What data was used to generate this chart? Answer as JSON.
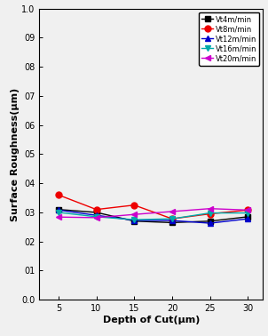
{
  "x": [
    5,
    10,
    15,
    20,
    25,
    30
  ],
  "series": [
    {
      "label": "Vt4m/min",
      "color": "#000000",
      "marker": "s",
      "markersize": 4,
      "y": [
        0.31,
        0.3,
        0.27,
        0.265,
        0.27,
        0.285
      ]
    },
    {
      "label": "Vt8m/min",
      "color": "#ee0000",
      "marker": "o",
      "markersize": 5,
      "y": [
        0.36,
        0.31,
        0.325,
        0.278,
        0.295,
        0.308
      ]
    },
    {
      "label": "Vt12m/min",
      "color": "#0000cc",
      "marker": "^",
      "markersize": 5,
      "y": [
        0.308,
        0.29,
        0.273,
        0.272,
        0.263,
        0.278
      ]
    },
    {
      "label": "Vt16m/min",
      "color": "#00aaaa",
      "marker": "v",
      "markersize": 5,
      "y": [
        0.3,
        0.285,
        0.275,
        0.278,
        0.298,
        0.298
      ]
    },
    {
      "label": "Vt20m/min",
      "color": "#cc00cc",
      "marker": "<",
      "markersize": 5,
      "y": [
        0.284,
        0.282,
        0.293,
        0.303,
        0.313,
        0.308
      ]
    }
  ],
  "xlabel": "Depth of Cut(μm)",
  "ylabel": "Surface Roughness(μm)",
  "xlim": [
    2.5,
    32
  ],
  "ylim": [
    0.0,
    1.0
  ],
  "xticks": [
    5,
    10,
    15,
    20,
    25,
    30
  ],
  "yticks": [
    0.0,
    0.1,
    0.2,
    0.3,
    0.4,
    0.5,
    0.6,
    0.7,
    0.8,
    0.9,
    1.0
  ],
  "ytick_labels": [
    "0.0",
    "01",
    "02",
    "03",
    "04",
    "05",
    "06",
    "07",
    "08",
    "09",
    "1.0"
  ],
  "background_color": "#f0f0f0",
  "linewidth": 1.0
}
